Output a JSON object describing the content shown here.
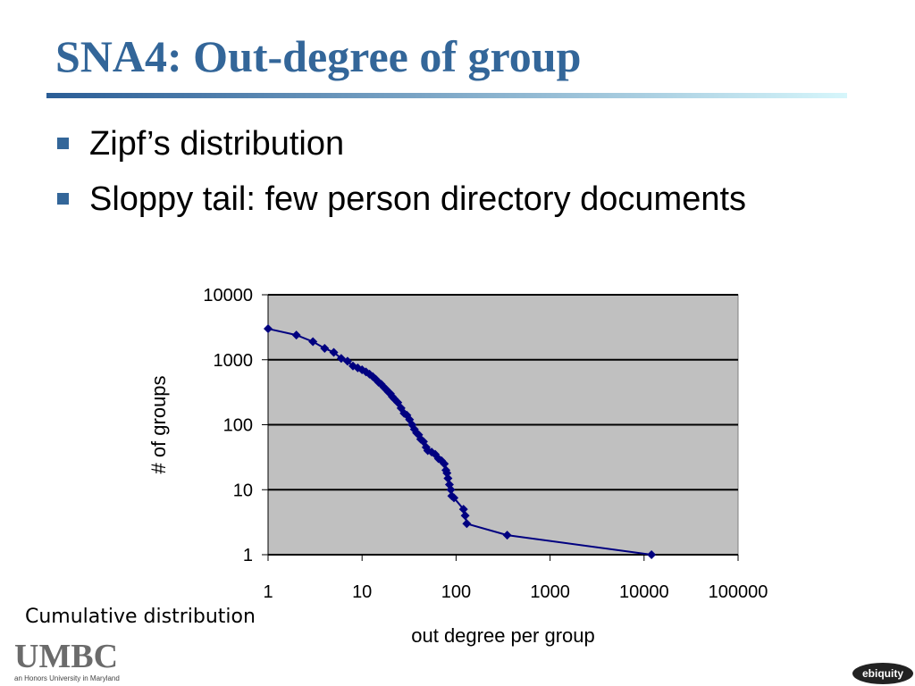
{
  "title": "SNA4: Out-degree of group",
  "bullets": [
    "Zipf’s distribution",
    "Sloppy tail: few person directory documents"
  ],
  "footnote": "Cumulative distribution",
  "logo": {
    "name": "UMBC",
    "tagline": "an Honors University in Maryland"
  },
  "brand": "ebiquity",
  "chart_data": {
    "type": "line",
    "markers": true,
    "x_label": "out degree per group",
    "y_label": "# of groups",
    "xscale": "log",
    "yscale": "log",
    "x": [
      1,
      2,
      3,
      4,
      5,
      6,
      7,
      8,
      9,
      10,
      11,
      12,
      13,
      14,
      15,
      16,
      17,
      18,
      19,
      20,
      21,
      22,
      24,
      26,
      28,
      30,
      32,
      34,
      36,
      38,
      40,
      42,
      45,
      48,
      50,
      55,
      60,
      65,
      70,
      75,
      78,
      80,
      82,
      85,
      88,
      90,
      95,
      120,
      125,
      130,
      350,
      12000
    ],
    "values": [
      3000,
      2400,
      1900,
      1500,
      1300,
      1050,
      950,
      800,
      750,
      700,
      650,
      600,
      550,
      500,
      450,
      420,
      380,
      350,
      320,
      300,
      270,
      250,
      220,
      180,
      150,
      140,
      120,
      100,
      85,
      75,
      70,
      60,
      55,
      45,
      40,
      38,
      35,
      30,
      28,
      25,
      20,
      18,
      15,
      12,
      10,
      8,
      7.5,
      5,
      4,
      3,
      2,
      1
    ],
    "color": "#000080",
    "plot_background": "#c0c0c0",
    "grid": true,
    "xlim": [
      1,
      100000
    ],
    "ylim": [
      1,
      10000
    ],
    "xticks": [
      1,
      10,
      100,
      1000,
      10000,
      100000
    ],
    "yticks": [
      1,
      10,
      100,
      1000,
      10000
    ]
  }
}
